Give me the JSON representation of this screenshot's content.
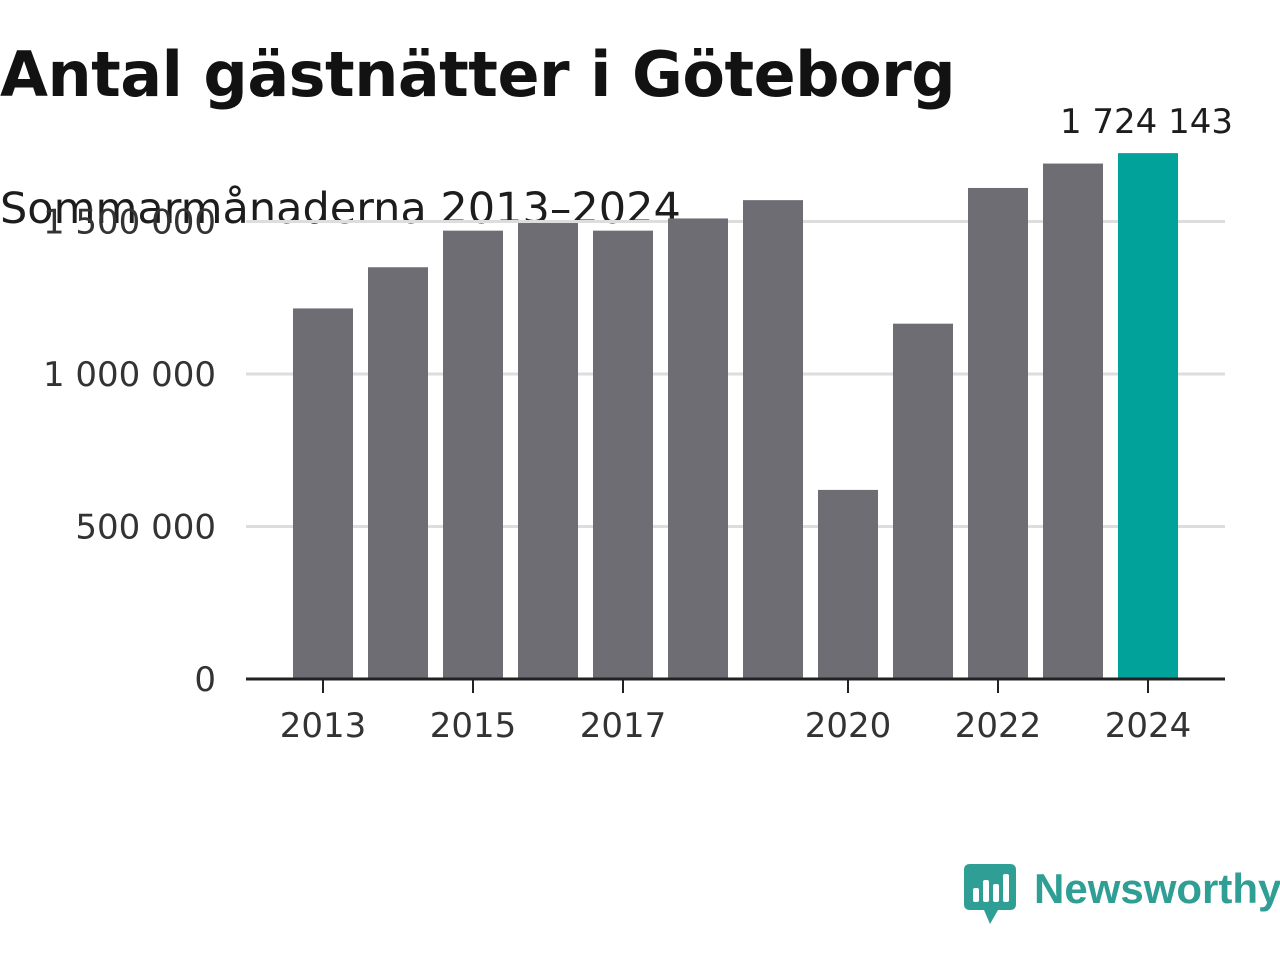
{
  "header": {
    "title": "Antal gästnätter i Göteborg",
    "subtitle": "Sommarmånaderna 2013–2024"
  },
  "brand": {
    "name": "Newsworthy",
    "icon": "newsworthy-logo-icon",
    "color": "#2f9e94"
  },
  "chart_data": {
    "type": "bar",
    "title": "Antal gästnätter i Göteborg",
    "subtitle": "Sommarmånaderna 2013–2024",
    "categories": [
      "2013",
      "2014",
      "2015",
      "2016",
      "2017",
      "2018",
      "2019",
      "2020",
      "2021",
      "2022",
      "2023",
      "2024"
    ],
    "values": [
      1215000,
      1350000,
      1470000,
      1495000,
      1470000,
      1510000,
      1570000,
      620000,
      1165000,
      1610000,
      1690000,
      1724143
    ],
    "xlabel": "",
    "ylabel": "",
    "ylim": [
      0,
      1800000
    ],
    "yticks": [
      {
        "value": 0,
        "label": "0"
      },
      {
        "value": 500000,
        "label": "500 000"
      },
      {
        "value": 1000000,
        "label": "1 000 000"
      },
      {
        "value": 1500000,
        "label": "1 500 000"
      }
    ],
    "xtick_labels": [
      "2013",
      "2015",
      "2017",
      "2020",
      "2022",
      "2024"
    ],
    "annotations": [
      {
        "category": "2024",
        "text": "1 724 143"
      }
    ],
    "grid": true,
    "colors": {
      "bar": "#6e6d73",
      "highlight": "#00a29a",
      "grid": "#dddddd",
      "axis": "#222222",
      "text": "#333333"
    },
    "highlight_category": "2024"
  }
}
